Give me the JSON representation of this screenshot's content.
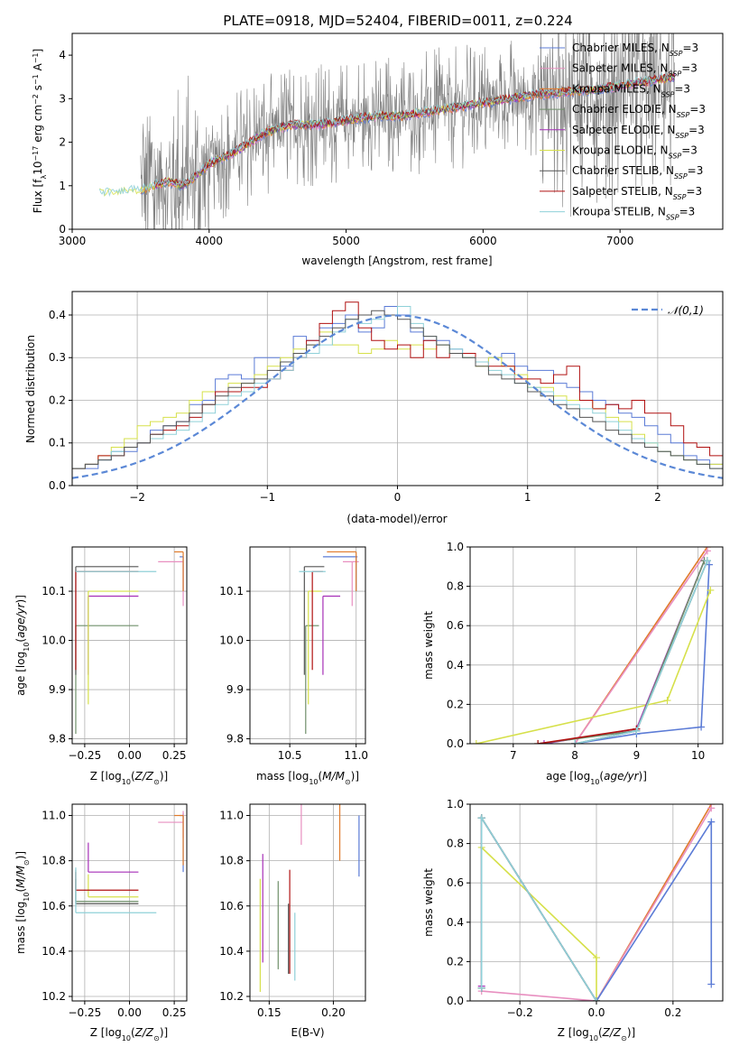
{
  "figure_title": "PLATE=0918, MJD=52404, FIBERID=0011, z=0.224",
  "colors": {
    "Chabrier MILES": "#5b7bd6",
    "Salpeter MILES": "#e88fc0",
    "Kroupa MILES": "#e07a2a",
    "Chabrier ELODIE": "#6f8f6a",
    "Salpeter ELODIE": "#a62fb8",
    "Kroupa ELODIE": "#d6e04a",
    "Chabrier STELIB": "#555555",
    "Salpeter STELIB": "#b01010",
    "Kroupa STELIB": "#8fd0d8",
    "data": "#808080",
    "normal": "#5b88d6"
  },
  "legend_top": [
    {
      "name": "Chabrier MILES",
      "label": "Chabrier MILES, N",
      "sub": "SSP",
      "suffix": "=3"
    },
    {
      "name": "Salpeter MILES",
      "label": "Salpeter MILES, N",
      "sub": "SSP",
      "suffix": "=3"
    },
    {
      "name": "Kroupa MILES",
      "label": "Kroupa MILES, N",
      "sub": "SSP",
      "suffix": "=3"
    },
    {
      "name": "Chabrier ELODIE",
      "label": "Chabrier ELODIE, N",
      "sub": "SSP",
      "suffix": "=3"
    },
    {
      "name": "Salpeter ELODIE",
      "label": "Salpeter ELODIE, N",
      "sub": "SSP",
      "suffix": "=3"
    },
    {
      "name": "Kroupa ELODIE",
      "label": "Kroupa ELODIE, N",
      "sub": "SSP",
      "suffix": "=3"
    },
    {
      "name": "Chabrier STELIB",
      "label": "Chabrier STELIB, N",
      "sub": "SSP",
      "suffix": "=3"
    },
    {
      "name": "Salpeter STELIB",
      "label": "Salpeter STELIB, N",
      "sub": "SSP",
      "suffix": "=3"
    },
    {
      "name": "Kroupa STELIB",
      "label": "Kroupa STELIB, N",
      "sub": "SSP",
      "suffix": "=3"
    }
  ],
  "chart_data": [
    {
      "id": "spectrum",
      "type": "line",
      "xlabel": "wavelength [Angstrom, rest frame]",
      "ylabel": "Flux [f",
      "ylabel_parts": [
        "Flux [f",
        "λ",
        "10",
        "−17",
        " erg cm",
        "−2",
        " s",
        "−1",
        " A",
        "−1",
        "]"
      ],
      "xlim": [
        3000,
        7750
      ],
      "ylim": [
        0,
        4.5
      ],
      "xticks": [
        3000,
        4000,
        5000,
        6000,
        7000
      ],
      "yticks": [
        0,
        1,
        2,
        3,
        4
      ],
      "grid": false,
      "legend": "top-right",
      "data_series": {
        "name": "data",
        "color": "gray",
        "wavelength_range": [
          3500,
          7400
        ]
      },
      "model_wavelength_range": [
        3200,
        7400
      ],
      "model_envelope": {
        "x": [
          3200,
          3300,
          3400,
          3500,
          3600,
          3700,
          3800,
          3900,
          4000,
          4200,
          4400,
          4600,
          4800,
          5000,
          5200,
          5400,
          5600,
          5800,
          6000,
          6200,
          6400,
          6600,
          6800,
          7000,
          7200,
          7400
        ],
        "y": [
          0.85,
          0.82,
          0.88,
          0.9,
          1.0,
          1.1,
          1.0,
          1.2,
          1.5,
          1.8,
          2.2,
          2.4,
          2.4,
          2.5,
          2.6,
          2.6,
          2.7,
          2.8,
          2.9,
          3.0,
          3.1,
          3.15,
          3.2,
          3.3,
          3.4,
          3.5
        ]
      }
    },
    {
      "id": "residuals",
      "type": "histogram",
      "xlabel": "(data-model)/error",
      "ylabel": "Normed distribution",
      "xlim": [
        -2.5,
        2.5
      ],
      "ylim": [
        0,
        0.455
      ],
      "xticks": [
        -2,
        -1,
        0,
        1,
        2
      ],
      "yticks": [
        0.0,
        0.1,
        0.2,
        0.3,
        0.4
      ],
      "grid": true,
      "legend": "top-right",
      "legend_label": "𝒩(0,1)",
      "bin_width": 0.1,
      "normal": {
        "mean": 0,
        "std": 1
      },
      "hist_base_note": "",
      "series_heights": {
        "Chabrier MILES": [
          0.02,
          0.03,
          0.04,
          0.04,
          0.06,
          0.08,
          0.08,
          0.1,
          0.13,
          0.14,
          0.15,
          0.19,
          0.2,
          0.25,
          0.26,
          0.25,
          0.3,
          0.3,
          0.28,
          0.35,
          0.34,
          0.37,
          0.38,
          0.4,
          0.36,
          0.37,
          0.42,
          0.4,
          0.36,
          0.34,
          0.34,
          0.32,
          0.3,
          0.29,
          0.3,
          0.31,
          0.28,
          0.27,
          0.27,
          0.24,
          0.23,
          0.22,
          0.2,
          0.19,
          0.17,
          0.16,
          0.14,
          0.12,
          0.1,
          0.07,
          0.06,
          0.05,
          0.04,
          0.04,
          0.03
        ],
        "Kroupa ELODIE": [
          0.03,
          0.03,
          0.04,
          0.05,
          0.07,
          0.09,
          0.11,
          0.14,
          0.15,
          0.16,
          0.17,
          0.2,
          0.22,
          0.22,
          0.24,
          0.24,
          0.26,
          0.28,
          0.3,
          0.32,
          0.33,
          0.36,
          0.33,
          0.33,
          0.31,
          0.32,
          0.34,
          0.32,
          0.33,
          0.32,
          0.33,
          0.31,
          0.3,
          0.28,
          0.3,
          0.28,
          0.26,
          0.23,
          0.23,
          0.21,
          0.2,
          0.2,
          0.18,
          0.16,
          0.15,
          0.12,
          0.1,
          0.08,
          0.07,
          0.06,
          0.05,
          0.05,
          0.04,
          0.04,
          0.03
        ],
        "Salpeter STELIB": [
          0.02,
          0.03,
          0.04,
          0.05,
          0.07,
          0.07,
          0.09,
          0.1,
          0.12,
          0.13,
          0.14,
          0.16,
          0.19,
          0.22,
          0.22,
          0.23,
          0.23,
          0.25,
          0.27,
          0.3,
          0.34,
          0.38,
          0.41,
          0.43,
          0.37,
          0.34,
          0.32,
          0.33,
          0.3,
          0.34,
          0.3,
          0.31,
          0.31,
          0.29,
          0.28,
          0.28,
          0.25,
          0.25,
          0.24,
          0.26,
          0.28,
          0.2,
          0.18,
          0.19,
          0.18,
          0.2,
          0.17,
          0.17,
          0.14,
          0.1,
          0.09,
          0.07,
          0.05,
          0.05,
          0.04
        ],
        "Kroupa STELIB": [
          0.02,
          0.03,
          0.04,
          0.05,
          0.06,
          0.08,
          0.09,
          0.1,
          0.11,
          0.12,
          0.13,
          0.15,
          0.17,
          0.19,
          0.21,
          0.22,
          0.24,
          0.25,
          0.27,
          0.3,
          0.31,
          0.33,
          0.36,
          0.39,
          0.38,
          0.39,
          0.4,
          0.42,
          0.38,
          0.35,
          0.33,
          0.32,
          0.3,
          0.29,
          0.27,
          0.26,
          0.24,
          0.23,
          0.22,
          0.2,
          0.19,
          0.18,
          0.17,
          0.15,
          0.13,
          0.11,
          0.1,
          0.08,
          0.07,
          0.06,
          0.05,
          0.04,
          0.04,
          0.03,
          0.03
        ],
        "Chabrier STELIB": [
          0.02,
          0.03,
          0.04,
          0.05,
          0.06,
          0.07,
          0.09,
          0.1,
          0.12,
          0.14,
          0.15,
          0.17,
          0.19,
          0.21,
          0.23,
          0.24,
          0.25,
          0.27,
          0.29,
          0.31,
          0.33,
          0.35,
          0.37,
          0.39,
          0.4,
          0.41,
          0.4,
          0.39,
          0.37,
          0.35,
          0.33,
          0.31,
          0.3,
          0.28,
          0.26,
          0.25,
          0.24,
          0.22,
          0.21,
          0.19,
          0.18,
          0.16,
          0.15,
          0.13,
          0.12,
          0.1,
          0.09,
          0.08,
          0.07,
          0.06,
          0.05,
          0.04,
          0.03,
          0.03,
          0.02
        ]
      }
    },
    {
      "id": "age-vs-Z",
      "type": "errorbar",
      "xlabel": "Z [log",
      "xlabel_parts": [
        "Z [log",
        "10",
        "(Z/Z",
        "☉",
        ")]"
      ],
      "ylabel_parts": [
        "age  [log",
        "10",
        "(age/yr)]"
      ],
      "xlim": [
        -0.32,
        0.32
      ],
      "ylim": [
        9.79,
        10.19
      ],
      "xticks": [
        -0.25,
        0.0,
        0.25
      ],
      "yticks": [
        9.8,
        9.9,
        10.0,
        10.1
      ],
      "xticklabels": [
        "−0.25",
        "0.00",
        "0.25"
      ],
      "grid": true
    },
    {
      "id": "age-vs-mass",
      "type": "errorbar",
      "xlabel_parts": [
        "mass [log",
        "10",
        "(M/M",
        "☉",
        ")]"
      ],
      "xlim": [
        10.2,
        11.07
      ],
      "ylim": [
        9.79,
        10.19
      ],
      "xticks": [
        10.5,
        11.0
      ],
      "yticks": [
        9.8,
        9.9,
        10.0,
        10.1
      ],
      "xticklabels": [
        "10.5",
        "11.0"
      ],
      "grid": true
    },
    {
      "id": "massweight-vs-age",
      "type": "line",
      "xlabel_parts": [
        "age  [log",
        "10",
        "(age/yr)]"
      ],
      "ylabel": "mass weight",
      "xlim": [
        6.3,
        10.4
      ],
      "ylim": [
        0,
        1.0
      ],
      "xticks": [
        7,
        8,
        9,
        10
      ],
      "yticks": [
        0.0,
        0.2,
        0.4,
        0.6,
        0.8,
        1.0
      ],
      "grid": true,
      "series": [
        {
          "name": "Kroupa MILES",
          "x": [
            8.0,
            10.15
          ],
          "y": [
            0.0,
            1.0
          ]
        },
        {
          "name": "Salpeter MILES",
          "x": [
            8.0,
            10.15
          ],
          "y": [
            0.0,
            0.98
          ]
        },
        {
          "name": "Chabrier MILES",
          "x": [
            8.0,
            9.0,
            10.05,
            10.18
          ],
          "y": [
            0.0,
            0.05,
            0.085,
            0.91
          ]
        },
        {
          "name": "Kroupa ELODIE",
          "x": [
            6.4,
            9.5,
            10.2
          ],
          "y": [
            0.0,
            0.22,
            0.78
          ]
        },
        {
          "name": "Salpeter ELODIE",
          "x": [
            7.5,
            9.0,
            10.1
          ],
          "y": [
            0.0,
            0.075,
            0.93
          ]
        },
        {
          "name": "Chabrier ELODIE",
          "x": [
            7.4,
            9.0,
            10.1
          ],
          "y": [
            0.0,
            0.065,
            0.93
          ]
        },
        {
          "name": "Salpeter STELIB",
          "x": [
            7.4,
            9.0
          ],
          "y": [
            0.0,
            0.075
          ]
        },
        {
          "name": "Chabrier STELIB",
          "x": [
            8.0,
            9.0,
            10.15
          ],
          "y": [
            0.0,
            0.065,
            0.93
          ]
        },
        {
          "name": "Kroupa STELIB",
          "x": [
            8.0,
            9.0,
            10.15
          ],
          "y": [
            0.0,
            0.065,
            0.93
          ]
        }
      ]
    },
    {
      "id": "mass-vs-Z",
      "type": "errorbar",
      "xlabel_parts": [
        "Z [log",
        "10",
        "(Z/Z",
        "☉",
        ")]"
      ],
      "ylabel_parts": [
        "mass [log",
        "10",
        "(M/M",
        "☉",
        ")]"
      ],
      "xlim": [
        -0.32,
        0.32
      ],
      "ylim": [
        10.18,
        11.05
      ],
      "xticks": [
        -0.25,
        0.0,
        0.25
      ],
      "yticks": [
        10.2,
        10.4,
        10.6,
        10.8,
        11.0
      ],
      "xticklabels": [
        "−0.25",
        "0.00",
        "0.25"
      ],
      "grid": true
    },
    {
      "id": "mass-vs-ebv",
      "type": "errorbar",
      "xlabel": "E(B-V)",
      "xlim": [
        0.135,
        0.225
      ],
      "ylim": [
        10.18,
        11.05
      ],
      "xticks": [
        0.15,
        0.2
      ],
      "yticks": [
        10.2,
        10.4,
        10.6,
        10.8,
        11.0
      ],
      "xticklabels": [
        "0.15",
        "0.20"
      ],
      "grid": true
    },
    {
      "id": "massweight-vs-Z",
      "type": "line",
      "xlabel_parts": [
        "Z [log",
        "10",
        "(Z/Z",
        "☉",
        ")]"
      ],
      "ylabel": "mass weight",
      "xlim": [
        -0.33,
        0.33
      ],
      "ylim": [
        0,
        1.0
      ],
      "xticks": [
        -0.2,
        0.0,
        0.2
      ],
      "yticks": [
        0.0,
        0.2,
        0.4,
        0.6,
        0.8,
        1.0
      ],
      "xticklabels": [
        "−0.2",
        "0.0",
        "0.2"
      ],
      "grid": true,
      "series": [
        {
          "name": "Kroupa MILES",
          "x": [
            0.0,
            0.3
          ],
          "y": [
            0.0,
            1.0
          ]
        },
        {
          "name": "Salpeter MILES",
          "x": [
            -0.3,
            0.0,
            0.3
          ],
          "y": [
            0.05,
            0.0,
            0.98
          ]
        },
        {
          "name": "Chabrier MILES",
          "x": [
            0.0,
            0.3,
            0.3
          ],
          "y": [
            0.0,
            0.91,
            0.085
          ]
        },
        {
          "name": "Kroupa ELODIE",
          "x": [
            -0.3,
            0.0,
            0.0
          ],
          "y": [
            0.78,
            0.22,
            0.0
          ]
        },
        {
          "name": "Salpeter ELODIE",
          "x": [
            -0.3,
            -0.3,
            0.0
          ],
          "y": [
            0.075,
            0.93,
            0.0
          ]
        },
        {
          "name": "Chabrier ELODIE",
          "x": [
            -0.3,
            -0.3,
            0.0
          ],
          "y": [
            0.065,
            0.93,
            0.0
          ]
        },
        {
          "name": "Chabrier STELIB",
          "x": [
            -0.3,
            -0.3,
            0.0
          ],
          "y": [
            0.065,
            0.93,
            0.0
          ]
        },
        {
          "name": "Kroupa STELIB",
          "x": [
            -0.3,
            -0.3,
            0.0
          ],
          "y": [
            0.065,
            0.93,
            0.0
          ]
        }
      ]
    }
  ],
  "fit_params": [
    {
      "name": "Chabrier MILES",
      "Z": 0.3,
      "Zerr": [
        0.02,
        0.0
      ],
      "age": 10.17,
      "ageErr": [
        0.07,
        0.0
      ],
      "mass": 11.0,
      "massErr": [
        0.25,
        0.01
      ],
      "ebv": 0.22,
      "ebvMassErr": [
        0.27,
        0.0
      ]
    },
    {
      "name": "Salpeter MILES",
      "Z": 0.3,
      "Zerr": [
        0.14,
        0.0
      ],
      "age": 10.16,
      "ageErr": [
        0.09,
        0.0
      ],
      "mass": 10.97,
      "massErr": [
        0.07,
        0.05
      ],
      "ebv": 0.175,
      "ebvMassErr": [
        0.1,
        0.13
      ]
    },
    {
      "name": "Kroupa MILES",
      "Z": 0.3,
      "Zerr": [
        0.05,
        0.0
      ],
      "age": 10.18,
      "ageErr": [
        0.08,
        0.0
      ],
      "mass": 11.0,
      "massErr": [
        0.22,
        0.0
      ],
      "ebv": 0.205,
      "ebvMassErr": [
        0.2,
        0.07
      ]
    },
    {
      "name": "Chabrier ELODIE",
      "Z": -0.3,
      "Zerr": [
        0.0,
        0.35
      ],
      "age": 10.03,
      "ageErr": [
        0.22,
        0.0
      ],
      "mass": 10.62,
      "massErr": [
        0.0,
        0.1
      ],
      "ebv": 0.157,
      "ebvMassErr": [
        0.3,
        0.09
      ]
    },
    {
      "name": "Salpeter ELODIE",
      "Z": -0.23,
      "Zerr": [
        0.0,
        0.28
      ],
      "age": 10.09,
      "ageErr": [
        0.16,
        0.0
      ],
      "mass": 10.75,
      "massErr": [
        0.0,
        0.13
      ],
      "ebv": 0.145,
      "ebvMassErr": [
        0.4,
        0.08
      ]
    },
    {
      "name": "Kroupa ELODIE",
      "Z": -0.23,
      "Zerr": [
        0.0,
        0.28
      ],
      "age": 10.1,
      "ageErr": [
        0.23,
        0.0
      ],
      "mass": 10.64,
      "massErr": [
        0.0,
        0.1
      ],
      "ebv": 0.143,
      "ebvMassErr": [
        0.42,
        0.08
      ]
    },
    {
      "name": "Chabrier STELIB",
      "Z": -0.3,
      "Zerr": [
        0.0,
        0.35
      ],
      "age": 10.15,
      "ageErr": [
        0.22,
        0.0
      ],
      "mass": 10.61,
      "massErr": [
        0.0,
        0.15
      ],
      "ebv": 0.165,
      "ebvMassErr": [
        0.31,
        0.0
      ]
    },
    {
      "name": "Salpeter STELIB",
      "Z": -0.3,
      "Zerr": [
        0.0,
        0.35
      ],
      "age": 10.14,
      "ageErr": [
        0.2,
        0.0
      ],
      "mass": 10.67,
      "massErr": [
        0.0,
        0.08
      ],
      "ebv": 0.166,
      "ebvMassErr": [
        0.37,
        0.09
      ]
    },
    {
      "name": "Kroupa STELIB",
      "Z": -0.3,
      "Zerr": [
        0.0,
        0.45
      ],
      "age": 10.14,
      "ageErr": [
        0.0,
        0.0
      ],
      "mass": 10.57,
      "massErr": [
        0.0,
        0.2
      ],
      "ebv": 0.17,
      "ebvMassErr": [
        0.3,
        0.0
      ]
    }
  ]
}
